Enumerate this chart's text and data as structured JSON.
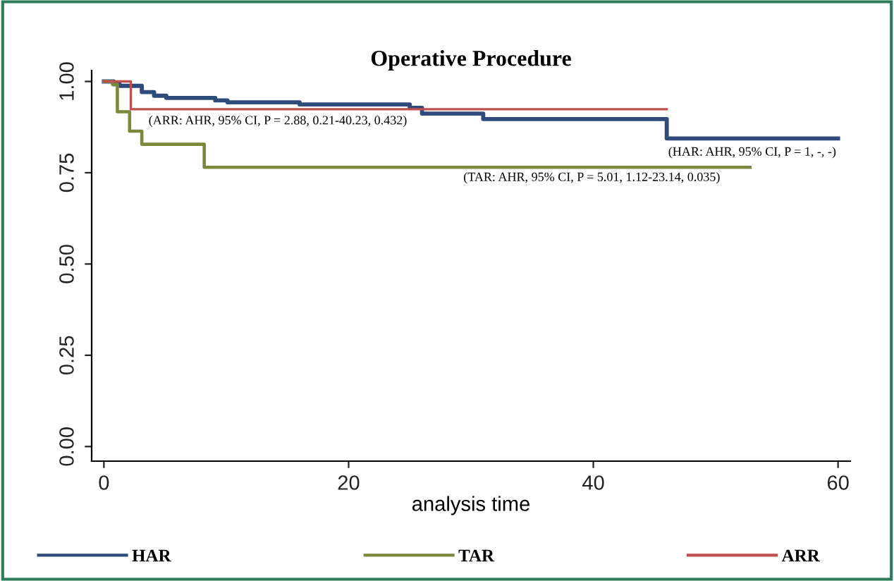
{
  "chart_data": {
    "type": "step",
    "title": "Operative Procedure",
    "xlabel": "analysis time",
    "xlim": [
      -1,
      61
    ],
    "ylim": [
      -0.04,
      1.03
    ],
    "xticks": [
      0,
      20,
      40,
      60
    ],
    "yticks": [
      {
        "value": 0,
        "label": "0.00"
      },
      {
        "value": 0.25,
        "label": "0.25"
      },
      {
        "value": 0.5,
        "label": "0.50"
      },
      {
        "value": 0.75,
        "label": "0.75"
      },
      {
        "value": 1,
        "label": "1.00"
      }
    ],
    "grid": false,
    "legend": "bottom",
    "line_style": "solid",
    "series": [
      {
        "name": "HAR",
        "color": "#2f4b7c",
        "x": [
          0,
          0.8,
          1.3,
          3.1,
          4.1,
          5.1,
          9.1,
          10.1,
          16,
          25,
          26,
          31,
          46,
          60
        ],
        "values": [
          1,
          0.992,
          0.988,
          0.971,
          0.961,
          0.955,
          0.948,
          0.943,
          0.937,
          0.928,
          0.912,
          0.897,
          0.844,
          0.844
        ]
      },
      {
        "name": "TAR",
        "color": "#7a8a3a",
        "x": [
          0,
          0.7,
          1.1,
          2.1,
          3.1,
          8.2,
          52.8
        ],
        "values": [
          1,
          0.992,
          0.917,
          0.864,
          0.828,
          0.765,
          0.765
        ]
      },
      {
        "name": "ARR",
        "color": "#c0504d",
        "x": [
          0,
          2.2,
          46
        ],
        "values": [
          1,
          0.924,
          0.924
        ]
      }
    ],
    "annotations": [
      "(ARR: AHR, 95% CI, P = 2.88, 0.21-40.23, 0.432)",
      "(TAR: AHR, 95% CI, P = 5.01, 1.12-23.14, 0.035)",
      "(HAR: AHR, 95% CI, P = 1, -, -)"
    ]
  }
}
